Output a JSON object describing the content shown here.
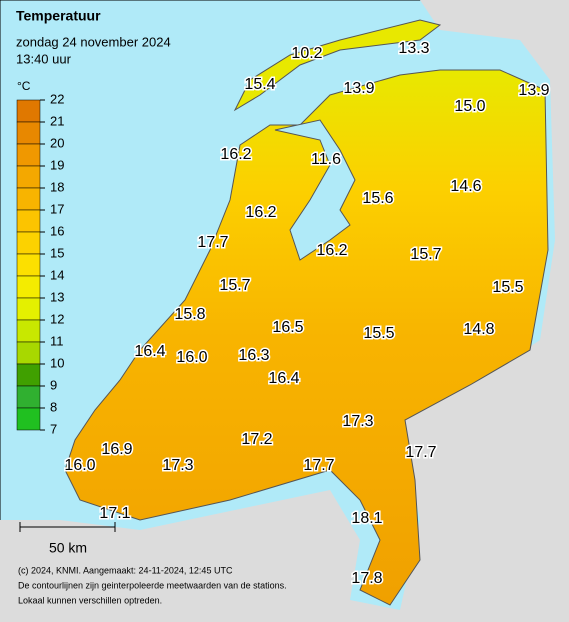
{
  "header": {
    "title": "Temperatuur",
    "date": "zondag 24 november 2024",
    "time": "13:40 uur"
  },
  "legend": {
    "unit": "°C",
    "ticks": [
      22,
      21,
      20,
      19,
      18,
      17,
      16,
      15,
      14,
      13,
      12,
      11,
      10,
      9,
      8,
      7
    ],
    "colors": [
      "#e07800",
      "#e88800",
      "#f09800",
      "#f4a800",
      "#f8b400",
      "#fcc400",
      "#fcd200",
      "#fce000",
      "#f4ec00",
      "#e4f000",
      "#c8e800",
      "#a8d800",
      "#40a000",
      "#30b030",
      "#20c020"
    ]
  },
  "stations": [
    "10.2",
    "13.3",
    "15.4",
    "13.9",
    "15.0",
    "13.9",
    "16.2",
    "11.6",
    "15.6",
    "14.6",
    "16.2",
    "17.7",
    "16.2",
    "15.7",
    "15.5",
    "15.7",
    "15.8",
    "16.5",
    "15.5",
    "14.8",
    "16.4",
    "16.0",
    "16.3",
    "16.4",
    "17.3",
    "16.9",
    "17.2",
    "17.7",
    "16.0",
    "17.3",
    "17.7",
    "17.1",
    "18.1",
    "17.8"
  ],
  "scale": "50 km",
  "footer": [
    "(c) 2024, KNMI. Aangemaakt: 24-11-2024, 12:45 UTC",
    "De contourlijnen zijn geinterpoleerde meetwaarden van de stations.",
    "Lokaal kunnen verschillen optreden."
  ]
}
